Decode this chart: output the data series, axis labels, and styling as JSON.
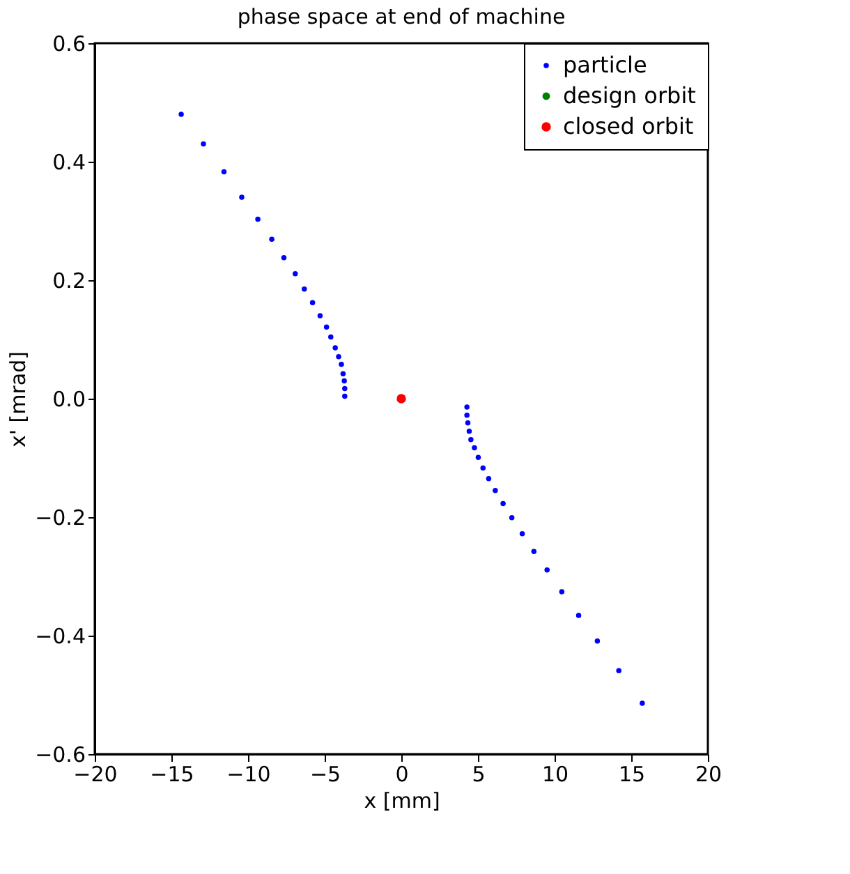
{
  "chart_data": {
    "type": "scatter",
    "title": "phase space at end of machine",
    "xlabel": "x [mm]",
    "ylabel": "x' [mrad]",
    "xlim": [
      -20,
      20
    ],
    "xticks": [
      -20,
      -15,
      -10,
      -5,
      0,
      5,
      10,
      15,
      20
    ],
    "ylim": [
      -0.6,
      0.6
    ],
    "yticks": [
      {
        "value": -0.6,
        "label": "−0.6"
      },
      {
        "value": -0.4,
        "label": "−0.4"
      },
      {
        "value": -0.2,
        "label": "−0.2"
      },
      {
        "value": 0,
        "label": "0.0"
      },
      {
        "value": 0.2,
        "label": "0.2"
      },
      {
        "value": 0.4,
        "label": "0.4"
      },
      {
        "value": 0.6,
        "label": "0.6"
      }
    ],
    "grid": false,
    "legend": "top right",
    "marker": "circle",
    "series": [
      {
        "name": "particle",
        "color": "#0000ff",
        "x": [
          -14.36,
          -12.91,
          -11.57,
          -10.41,
          -9.36,
          -8.45,
          -7.66,
          -6.92,
          -6.33,
          -5.79,
          -5.3,
          -4.88,
          -4.6,
          -4.31,
          -4.09,
          -3.91,
          -3.8,
          -3.72,
          -3.69,
          -3.69,
          4.28,
          4.28,
          4.34,
          4.43,
          4.54,
          4.77,
          5.02,
          5.33,
          5.7,
          6.13,
          6.64,
          7.21,
          7.89,
          8.65,
          9.51,
          10.47,
          11.57,
          12.79,
          14.19,
          15.72
        ],
        "values": [
          0.48,
          0.43,
          0.383,
          0.34,
          0.303,
          0.269,
          0.238,
          0.211,
          0.185,
          0.162,
          0.14,
          0.121,
          0.104,
          0.086,
          0.071,
          0.058,
          0.042,
          0.03,
          0.017,
          0.004,
          -0.014,
          -0.028,
          -0.041,
          -0.055,
          -0.069,
          -0.083,
          -0.099,
          -0.117,
          -0.135,
          -0.155,
          -0.177,
          -0.201,
          -0.228,
          -0.258,
          -0.289,
          -0.326,
          -0.366,
          -0.409,
          -0.459,
          -0.514
        ]
      },
      {
        "name": "design orbit",
        "color": "#007f00"
      },
      {
        "name": "closed orbit",
        "color": "#ff0000",
        "x": [
          0
        ],
        "values": [
          0
        ]
      }
    ]
  }
}
